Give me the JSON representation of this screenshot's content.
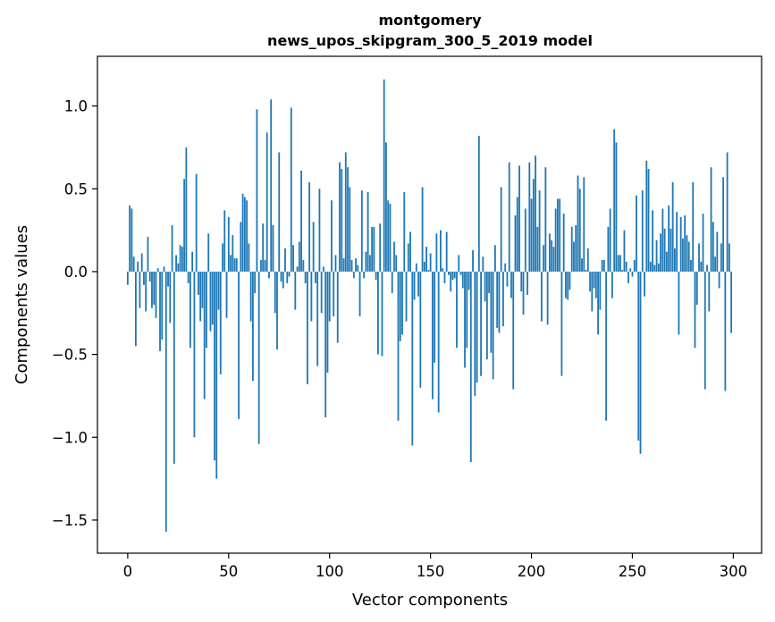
{
  "chart_data": {
    "type": "bar",
    "title": "montgomery",
    "subtitle": "news_upos_skipgram_300_5_2019 model",
    "xlabel": "Vector components",
    "ylabel": "Components values",
    "xlim": [
      -15,
      314
    ],
    "ylim": [
      -1.7,
      1.3
    ],
    "xticks": [
      0,
      50,
      100,
      150,
      200,
      250,
      300
    ],
    "yticks": [
      -1.5,
      -1.0,
      -0.5,
      0.0,
      0.5,
      1.0
    ],
    "ytick_labels": [
      "−1.5",
      "−1.0",
      "−0.5",
      "0.0",
      "0.5",
      "1.0"
    ],
    "grid": false,
    "bar_color": "#1f77b4",
    "x": [
      0,
      1,
      2,
      3,
      4,
      5,
      6,
      7,
      8,
      9,
      10,
      11,
      12,
      13,
      14,
      15,
      16,
      17,
      18,
      19,
      20,
      21,
      22,
      23,
      24,
      25,
      26,
      27,
      28,
      29,
      30,
      31,
      32,
      33,
      34,
      35,
      36,
      37,
      38,
      39,
      40,
      41,
      42,
      43,
      44,
      45,
      46,
      47,
      48,
      49,
      50,
      51,
      52,
      53,
      54,
      55,
      56,
      57,
      58,
      59,
      60,
      61,
      62,
      63,
      64,
      65,
      66,
      67,
      68,
      69,
      70,
      71,
      72,
      73,
      74,
      75,
      76,
      77,
      78,
      79,
      80,
      81,
      82,
      83,
      84,
      85,
      86,
      87,
      88,
      89,
      90,
      91,
      92,
      93,
      94,
      95,
      96,
      97,
      98,
      99,
      100,
      101,
      102,
      103,
      104,
      105,
      106,
      107,
      108,
      109,
      110,
      111,
      112,
      113,
      114,
      115,
      116,
      117,
      118,
      119,
      120,
      121,
      122,
      123,
      124,
      125,
      126,
      127,
      128,
      129,
      130,
      131,
      132,
      133,
      134,
      135,
      136,
      137,
      138,
      139,
      140,
      141,
      142,
      143,
      144,
      145,
      146,
      147,
      148,
      149,
      150,
      151,
      152,
      153,
      154,
      155,
      156,
      157,
      158,
      159,
      160,
      161,
      162,
      163,
      164,
      165,
      166,
      167,
      168,
      169,
      170,
      171,
      172,
      173,
      174,
      175,
      176,
      177,
      178,
      179,
      180,
      181,
      182,
      183,
      184,
      185,
      186,
      187,
      188,
      189,
      190,
      191,
      192,
      193,
      194,
      195,
      196,
      197,
      198,
      199,
      200,
      201,
      202,
      203,
      204,
      205,
      206,
      207,
      208,
      209,
      210,
      211,
      212,
      213,
      214,
      215,
      216,
      217,
      218,
      219,
      220,
      221,
      222,
      223,
      224,
      225,
      226,
      227,
      228,
      229,
      230,
      231,
      232,
      233,
      234,
      235,
      236,
      237,
      238,
      239,
      240,
      241,
      242,
      243,
      244,
      245,
      246,
      247,
      248,
      249,
      250,
      251,
      252,
      253,
      254,
      255,
      256,
      257,
      258,
      259,
      260,
      261,
      262,
      263,
      264,
      265,
      266,
      267,
      268,
      269,
      270,
      271,
      272,
      273,
      274,
      275,
      276,
      277,
      278,
      279,
      280,
      281,
      282,
      283,
      284,
      285,
      286,
      287,
      288,
      289,
      290,
      291,
      292,
      293,
      294,
      295,
      296,
      297,
      298,
      299
    ],
    "values": [
      -0.08,
      0.4,
      0.38,
      0.09,
      -0.45,
      0.06,
      -0.22,
      0.11,
      -0.08,
      -0.24,
      0.21,
      -0.06,
      -0.22,
      -0.2,
      -0.28,
      0.02,
      -0.48,
      -0.41,
      0.03,
      -1.57,
      -0.09,
      -0.31,
      0.28,
      -1.16,
      0.1,
      0.05,
      0.16,
      0.15,
      0.56,
      0.75,
      -0.07,
      -0.46,
      0.12,
      -1.0,
      0.59,
      -0.14,
      -0.3,
      -0.22,
      -0.77,
      -0.46,
      0.23,
      -0.36,
      -0.32,
      -1.14,
      -1.25,
      -0.23,
      -0.62,
      0.17,
      0.37,
      -0.28,
      0.33,
      0.1,
      0.22,
      0.08,
      0.08,
      -0.89,
      0.3,
      0.47,
      0.45,
      0.43,
      0.17,
      -0.3,
      -0.66,
      -0.13,
      0.98,
      -1.04,
      0.07,
      0.29,
      0.07,
      0.84,
      -0.04,
      1.04,
      0.28,
      -0.25,
      -0.47,
      0.72,
      -0.06,
      -0.1,
      0.14,
      -0.07,
      -0.03,
      0.99,
      0.16,
      -0.23,
      0.03,
      0.18,
      0.61,
      0.07,
      -0.07,
      -0.68,
      0.54,
      -0.3,
      0.3,
      -0.07,
      -0.57,
      0.5,
      -0.25,
      0.03,
      -0.88,
      -0.61,
      -0.3,
      0.43,
      -0.27,
      0.1,
      -0.43,
      0.66,
      0.62,
      0.08,
      0.72,
      0.63,
      0.51,
      0.07,
      -0.04,
      0.08,
      0.04,
      -0.27,
      0.49,
      -0.04,
      0.12,
      0.48,
      0.1,
      0.27,
      0.27,
      -0.05,
      -0.5,
      0.29,
      -0.51,
      1.16,
      0.78,
      0.43,
      0.41,
      -0.13,
      0.18,
      0.1,
      -0.9,
      -0.42,
      -0.38,
      0.48,
      -0.3,
      0.17,
      0.24,
      -1.05,
      -0.17,
      0.05,
      -0.15,
      -0.7,
      0.51,
      0.06,
      0.15,
      0.01,
      0.11,
      -0.77,
      -0.55,
      0.23,
      -0.85,
      0.25,
      0.02,
      -0.07,
      0.24,
      -0.02,
      -0.12,
      -0.05,
      -0.04,
      -0.46,
      0.1,
      -0.02,
      -0.1,
      -0.58,
      -0.46,
      -0.11,
      -1.15,
      0.13,
      -0.75,
      -0.67,
      0.82,
      -0.63,
      0.09,
      -0.18,
      -0.53,
      -0.13,
      -0.49,
      -0.65,
      0.16,
      -0.34,
      -0.37,
      0.51,
      -0.33,
      0.05,
      -0.09,
      0.66,
      -0.16,
      -0.71,
      0.34,
      0.45,
      0.64,
      -0.12,
      -0.26,
      0.38,
      -0.14,
      0.66,
      0.44,
      0.56,
      0.7,
      0.27,
      0.49,
      -0.3,
      0.16,
      0.63,
      -0.32,
      0.23,
      0.19,
      0.15,
      0.38,
      0.44,
      0.44,
      -0.63,
      0.35,
      -0.16,
      -0.17,
      -0.11,
      0.27,
      0.18,
      0.28,
      0.58,
      0.5,
      0.08,
      0.57,
      0.01,
      0.14,
      -0.12,
      -0.24,
      -0.1,
      -0.16,
      -0.38,
      -0.23,
      0.07,
      0.07,
      -0.9,
      0.27,
      0.38,
      -0.16,
      0.86,
      0.78,
      0.1,
      0.1,
      0.01,
      0.25,
      0.06,
      -0.07,
      0.02,
      -0.03,
      0.07,
      0.46,
      -1.02,
      -1.1,
      0.49,
      -0.15,
      0.67,
      0.62,
      0.06,
      0.37,
      0.04,
      0.19,
      0.05,
      0.23,
      0.38,
      0.26,
      0.12,
      0.4,
      0.26,
      0.54,
      0.14,
      0.36,
      -0.38,
      0.33,
      0.2,
      0.34,
      0.22,
      0.18,
      0.07,
      0.54,
      -0.46,
      -0.2,
      0.17,
      0.06,
      0.35,
      -0.71,
      0.04,
      -0.24,
      0.63,
      0.3,
      0.09,
      0.24,
      -0.1,
      0.17,
      0.57,
      -0.72,
      0.72,
      0.17,
      -0.37
    ]
  }
}
